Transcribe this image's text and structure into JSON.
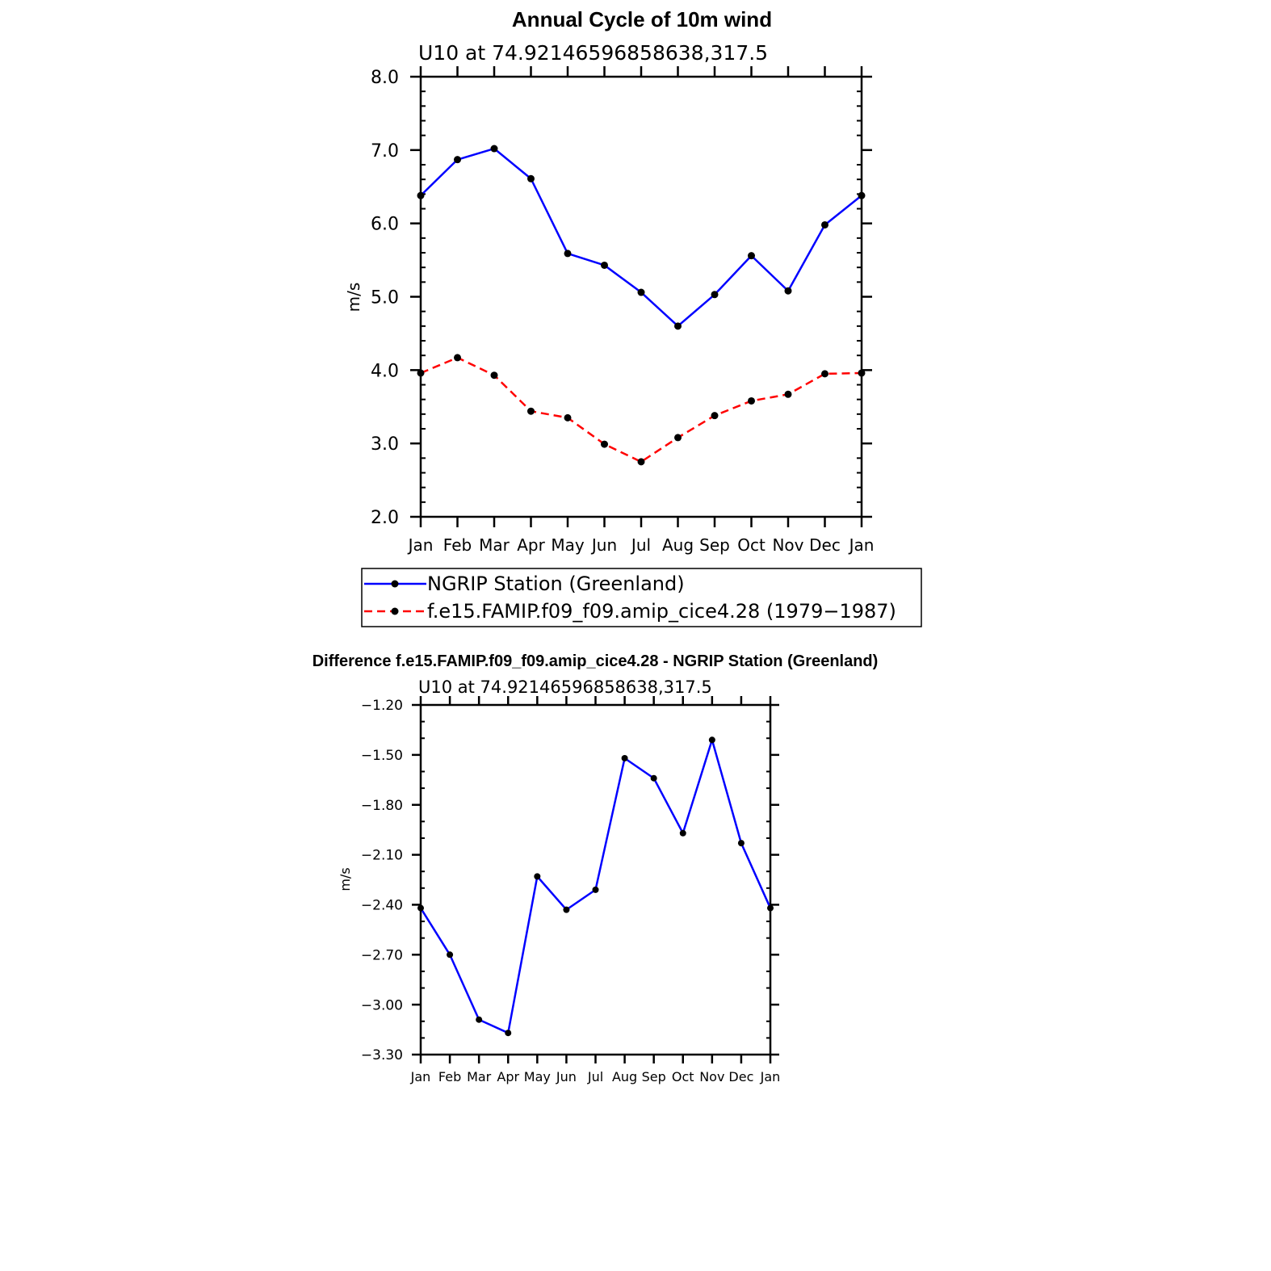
{
  "chart_data": [
    {
      "type": "line",
      "title": "Annual Cycle of 10m wind",
      "subtitle": "U10 at 74.92146596858638,317.5",
      "ylabel": "m/s",
      "xlabel": "",
      "categories": [
        "Jan",
        "Feb",
        "Mar",
        "Apr",
        "May",
        "Jun",
        "Jul",
        "Aug",
        "Sep",
        "Oct",
        "Nov",
        "Dec",
        "Jan"
      ],
      "ylim": [
        2.0,
        8.0
      ],
      "yticks": [
        "2.0",
        "3.0",
        "4.0",
        "5.0",
        "6.0",
        "7.0",
        "8.0"
      ],
      "series": [
        {
          "name": "NGRIP Station (Greenland)",
          "color": "#0000ff",
          "dash": "solid",
          "values": [
            6.38,
            6.87,
            7.02,
            6.61,
            5.59,
            5.43,
            5.06,
            4.6,
            5.03,
            5.56,
            5.08,
            5.98,
            6.38
          ]
        },
        {
          "name": "f.e15.FAMIP.f09_f09.amip_cice4.28 (1979−1987)",
          "color": "#ff0000",
          "dash": "dashed",
          "values": [
            3.96,
            4.17,
            3.93,
            3.44,
            3.35,
            2.99,
            2.75,
            3.08,
            3.38,
            3.58,
            3.67,
            3.95,
            3.96
          ]
        }
      ],
      "legend": "below"
    },
    {
      "type": "line",
      "title": "Difference f.e15.FAMIP.f09_f09.amip_cice4.28 - NGRIP Station (Greenland)",
      "subtitle": "U10 at 74.92146596858638,317.5",
      "ylabel": "m/s",
      "xlabel": "",
      "categories": [
        "Jan",
        "Feb",
        "Mar",
        "Apr",
        "May",
        "Jun",
        "Jul",
        "Aug",
        "Sep",
        "Oct",
        "Nov",
        "Dec",
        "Jan"
      ],
      "ylim": [
        -3.3,
        -1.2
      ],
      "yticks": [
        "−3.30",
        "−3.00",
        "−2.70",
        "−2.40",
        "−2.10",
        "−1.80",
        "−1.50",
        "−1.20"
      ],
      "series": [
        {
          "color": "#0000ff",
          "dash": "solid",
          "values": [
            -2.42,
            -2.7,
            -3.09,
            -3.17,
            -2.23,
            -2.43,
            -2.31,
            -1.52,
            -1.64,
            -1.97,
            -1.41,
            -2.03,
            -2.42
          ]
        }
      ]
    }
  ]
}
